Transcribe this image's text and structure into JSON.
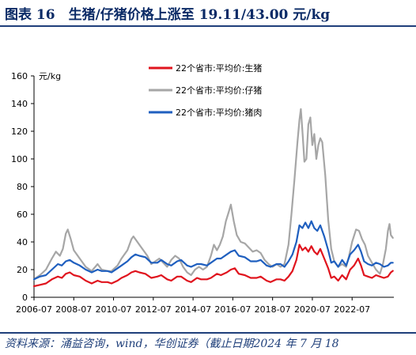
{
  "figure": {
    "title": "图表 16　生猪/仔猪价格上涨至 19.11/43.00 元/kg",
    "source": "资料来源：涌益咨询，wind，华创证券（截止日期2024 年 7 月 18"
  },
  "colors": {
    "pig": "#e0141e",
    "piglet": "#a6a6a6",
    "pork": "#1f5fbf",
    "accent": "#1f3f7a"
  },
  "chart_data": {
    "type": "line",
    "ylabel": "元/kg",
    "ylim": [
      0,
      160
    ],
    "yticks": [
      0,
      20,
      40,
      60,
      80,
      100,
      120,
      140,
      160
    ],
    "xlim": [
      2006.5,
      2024.6
    ],
    "xticks": [
      {
        "v": 2006.5,
        "label": "2006-07"
      },
      {
        "v": 2008.5,
        "label": "2008-07"
      },
      {
        "v": 2010.5,
        "label": "2010-07"
      },
      {
        "v": 2012.5,
        "label": "2012-07"
      },
      {
        "v": 2014.5,
        "label": "2014-07"
      },
      {
        "v": 2016.5,
        "label": "2016-07"
      },
      {
        "v": 2018.5,
        "label": "2018-07"
      },
      {
        "v": 2020.5,
        "label": "2020-07"
      },
      {
        "v": 2022.5,
        "label": "2022-07"
      }
    ],
    "grid": false,
    "legend_position": "top-center",
    "series": [
      {
        "name": "22个省市:平均价:生猪",
        "color": "#e0141e",
        "points": [
          [
            2006.5,
            8
          ],
          [
            2006.8,
            9
          ],
          [
            2007.1,
            10
          ],
          [
            2007.4,
            13
          ],
          [
            2007.7,
            15
          ],
          [
            2007.9,
            14
          ],
          [
            2008.1,
            17
          ],
          [
            2008.3,
            18
          ],
          [
            2008.5,
            16
          ],
          [
            2008.8,
            15
          ],
          [
            2009.1,
            12
          ],
          [
            2009.4,
            10
          ],
          [
            2009.7,
            12
          ],
          [
            2009.9,
            11
          ],
          [
            2010.2,
            11
          ],
          [
            2010.4,
            10
          ],
          [
            2010.7,
            12
          ],
          [
            2010.9,
            14
          ],
          [
            2011.2,
            16
          ],
          [
            2011.4,
            18
          ],
          [
            2011.6,
            19
          ],
          [
            2011.8,
            18
          ],
          [
            2012.1,
            17
          ],
          [
            2012.4,
            14
          ],
          [
            2012.7,
            15
          ],
          [
            2012.9,
            16
          ],
          [
            2013.2,
            13
          ],
          [
            2013.4,
            12
          ],
          [
            2013.7,
            15
          ],
          [
            2013.9,
            15
          ],
          [
            2014.2,
            12
          ],
          [
            2014.4,
            11
          ],
          [
            2014.7,
            14
          ],
          [
            2014.9,
            13
          ],
          [
            2015.2,
            13
          ],
          [
            2015.4,
            14
          ],
          [
            2015.7,
            17
          ],
          [
            2015.9,
            16
          ],
          [
            2016.2,
            18
          ],
          [
            2016.4,
            20
          ],
          [
            2016.6,
            21
          ],
          [
            2016.8,
            17
          ],
          [
            2017.1,
            16
          ],
          [
            2017.4,
            14
          ],
          [
            2017.7,
            14
          ],
          [
            2017.9,
            15
          ],
          [
            2018.2,
            12
          ],
          [
            2018.4,
            11
          ],
          [
            2018.7,
            13
          ],
          [
            2018.9,
            13
          ],
          [
            2019.1,
            12
          ],
          [
            2019.3,
            15
          ],
          [
            2019.5,
            19
          ],
          [
            2019.7,
            27
          ],
          [
            2019.85,
            38
          ],
          [
            2020.0,
            34
          ],
          [
            2020.15,
            36
          ],
          [
            2020.3,
            33
          ],
          [
            2020.45,
            37
          ],
          [
            2020.6,
            33
          ],
          [
            2020.75,
            31
          ],
          [
            2020.9,
            35
          ],
          [
            2021.1,
            28
          ],
          [
            2021.3,
            21
          ],
          [
            2021.45,
            14
          ],
          [
            2021.6,
            15
          ],
          [
            2021.8,
            12
          ],
          [
            2022.0,
            16
          ],
          [
            2022.2,
            13
          ],
          [
            2022.4,
            20
          ],
          [
            2022.6,
            23
          ],
          [
            2022.8,
            28
          ],
          [
            2022.95,
            23
          ],
          [
            2023.1,
            16
          ],
          [
            2023.3,
            15
          ],
          [
            2023.5,
            14
          ],
          [
            2023.7,
            16
          ],
          [
            2023.9,
            15
          ],
          [
            2024.1,
            14
          ],
          [
            2024.3,
            15
          ],
          [
            2024.45,
            18
          ],
          [
            2024.55,
            19.11
          ]
        ]
      },
      {
        "name": "22个省市:平均价:仔猪",
        "color": "#a6a6a6",
        "points": [
          [
            2006.5,
            13
          ],
          [
            2006.8,
            16
          ],
          [
            2007.1,
            20
          ],
          [
            2007.4,
            28
          ],
          [
            2007.6,
            33
          ],
          [
            2007.8,
            30
          ],
          [
            2007.95,
            35
          ],
          [
            2008.1,
            46
          ],
          [
            2008.2,
            49
          ],
          [
            2008.35,
            42
          ],
          [
            2008.5,
            34
          ],
          [
            2008.8,
            28
          ],
          [
            2009.1,
            22
          ],
          [
            2009.4,
            19
          ],
          [
            2009.7,
            24
          ],
          [
            2009.9,
            20
          ],
          [
            2010.2,
            19
          ],
          [
            2010.4,
            19
          ],
          [
            2010.7,
            23
          ],
          [
            2010.9,
            28
          ],
          [
            2011.2,
            34
          ],
          [
            2011.4,
            42
          ],
          [
            2011.5,
            44
          ],
          [
            2011.7,
            40
          ],
          [
            2011.9,
            36
          ],
          [
            2012.2,
            30
          ],
          [
            2012.4,
            24
          ],
          [
            2012.6,
            26
          ],
          [
            2012.8,
            28
          ],
          [
            2013.0,
            25
          ],
          [
            2013.2,
            22
          ],
          [
            2013.4,
            27
          ],
          [
            2013.6,
            30
          ],
          [
            2013.8,
            28
          ],
          [
            2014.0,
            22
          ],
          [
            2014.2,
            18
          ],
          [
            2014.4,
            16
          ],
          [
            2014.6,
            20
          ],
          [
            2014.8,
            22
          ],
          [
            2015.0,
            20
          ],
          [
            2015.2,
            22
          ],
          [
            2015.4,
            30
          ],
          [
            2015.55,
            38
          ],
          [
            2015.7,
            34
          ],
          [
            2015.85,
            38
          ],
          [
            2016.0,
            44
          ],
          [
            2016.15,
            55
          ],
          [
            2016.3,
            62
          ],
          [
            2016.4,
            67
          ],
          [
            2016.55,
            55
          ],
          [
            2016.7,
            45
          ],
          [
            2016.9,
            40
          ],
          [
            2017.1,
            39
          ],
          [
            2017.3,
            36
          ],
          [
            2017.5,
            33
          ],
          [
            2017.7,
            34
          ],
          [
            2017.9,
            32
          ],
          [
            2018.1,
            27
          ],
          [
            2018.3,
            24
          ],
          [
            2018.5,
            22
          ],
          [
            2018.7,
            24
          ],
          [
            2018.9,
            22
          ],
          [
            2019.1,
            24
          ],
          [
            2019.3,
            38
          ],
          [
            2019.45,
            60
          ],
          [
            2019.6,
            85
          ],
          [
            2019.75,
            112
          ],
          [
            2019.85,
            128
          ],
          [
            2019.92,
            136
          ],
          [
            2020.0,
            120
          ],
          [
            2020.1,
            98
          ],
          [
            2020.2,
            100
          ],
          [
            2020.3,
            125
          ],
          [
            2020.4,
            130
          ],
          [
            2020.5,
            110
          ],
          [
            2020.6,
            118
          ],
          [
            2020.7,
            100
          ],
          [
            2020.8,
            110
          ],
          [
            2020.9,
            115
          ],
          [
            2021.0,
            112
          ],
          [
            2021.15,
            88
          ],
          [
            2021.3,
            56
          ],
          [
            2021.45,
            35
          ],
          [
            2021.6,
            26
          ],
          [
            2021.8,
            22
          ],
          [
            2022.0,
            24
          ],
          [
            2022.2,
            22
          ],
          [
            2022.35,
            30
          ],
          [
            2022.5,
            40
          ],
          [
            2022.7,
            49
          ],
          [
            2022.85,
            48
          ],
          [
            2023.0,
            42
          ],
          [
            2023.15,
            38
          ],
          [
            2023.3,
            30
          ],
          [
            2023.5,
            25
          ],
          [
            2023.7,
            20
          ],
          [
            2023.9,
            17
          ],
          [
            2024.05,
            24
          ],
          [
            2024.2,
            35
          ],
          [
            2024.3,
            48
          ],
          [
            2024.38,
            53
          ],
          [
            2024.45,
            45
          ],
          [
            2024.55,
            43.0
          ]
        ]
      },
      {
        "name": "22个省市:平均价:猪肉",
        "color": "#1f5fbf",
        "points": [
          [
            2006.5,
            13
          ],
          [
            2006.8,
            15
          ],
          [
            2007.1,
            16
          ],
          [
            2007.4,
            20
          ],
          [
            2007.7,
            24
          ],
          [
            2007.9,
            23
          ],
          [
            2008.1,
            26
          ],
          [
            2008.3,
            27
          ],
          [
            2008.5,
            25
          ],
          [
            2008.8,
            23
          ],
          [
            2009.1,
            20
          ],
          [
            2009.4,
            18
          ],
          [
            2009.7,
            20
          ],
          [
            2009.9,
            19
          ],
          [
            2010.2,
            19
          ],
          [
            2010.4,
            18
          ],
          [
            2010.7,
            21
          ],
          [
            2010.9,
            23
          ],
          [
            2011.2,
            26
          ],
          [
            2011.4,
            29
          ],
          [
            2011.6,
            31
          ],
          [
            2011.8,
            30
          ],
          [
            2012.1,
            29
          ],
          [
            2012.4,
            25
          ],
          [
            2012.7,
            25
          ],
          [
            2012.9,
            27
          ],
          [
            2013.2,
            24
          ],
          [
            2013.4,
            23
          ],
          [
            2013.7,
            26
          ],
          [
            2013.9,
            27
          ],
          [
            2014.2,
            23
          ],
          [
            2014.4,
            22
          ],
          [
            2014.7,
            24
          ],
          [
            2014.9,
            24
          ],
          [
            2015.2,
            23
          ],
          [
            2015.4,
            25
          ],
          [
            2015.7,
            28
          ],
          [
            2015.9,
            28
          ],
          [
            2016.2,
            31
          ],
          [
            2016.4,
            33
          ],
          [
            2016.6,
            34
          ],
          [
            2016.8,
            30
          ],
          [
            2017.1,
            29
          ],
          [
            2017.4,
            26
          ],
          [
            2017.7,
            26
          ],
          [
            2017.9,
            27
          ],
          [
            2018.2,
            23
          ],
          [
            2018.4,
            22
          ],
          [
            2018.7,
            24
          ],
          [
            2018.9,
            24
          ],
          [
            2019.1,
            22
          ],
          [
            2019.3,
            26
          ],
          [
            2019.5,
            31
          ],
          [
            2019.7,
            40
          ],
          [
            2019.85,
            52
          ],
          [
            2020.0,
            50
          ],
          [
            2020.15,
            54
          ],
          [
            2020.3,
            50
          ],
          [
            2020.45,
            55
          ],
          [
            2020.6,
            50
          ],
          [
            2020.75,
            48
          ],
          [
            2020.9,
            52
          ],
          [
            2021.1,
            44
          ],
          [
            2021.3,
            34
          ],
          [
            2021.45,
            25
          ],
          [
            2021.6,
            26
          ],
          [
            2021.8,
            22
          ],
          [
            2022.0,
            27
          ],
          [
            2022.2,
            23
          ],
          [
            2022.4,
            31
          ],
          [
            2022.6,
            34
          ],
          [
            2022.8,
            38
          ],
          [
            2022.95,
            33
          ],
          [
            2023.1,
            26
          ],
          [
            2023.3,
            24
          ],
          [
            2023.5,
            23
          ],
          [
            2023.7,
            25
          ],
          [
            2023.9,
            24
          ],
          [
            2024.1,
            22
          ],
          [
            2024.3,
            23
          ],
          [
            2024.45,
            25
          ],
          [
            2024.55,
            25
          ]
        ]
      }
    ]
  }
}
